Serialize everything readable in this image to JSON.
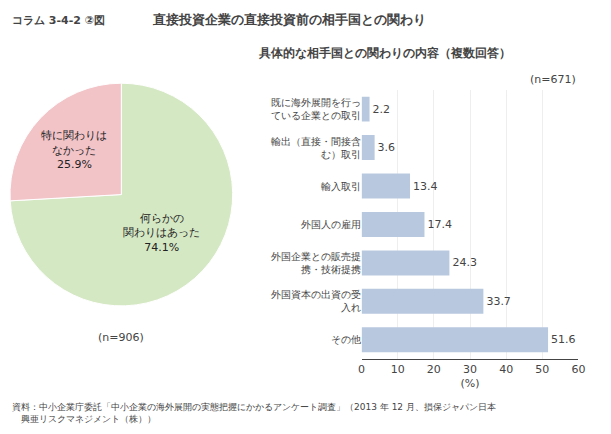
{
  "chart_data": [
    {
      "type": "pie",
      "title": "直接投資企業の直接投資前の相手国との関わり",
      "categories": [
        "何らかの\n関わりはあった",
        "特に関わりは\nなかった"
      ],
      "values": [
        74.1,
        25.9
      ],
      "value_labels": [
        "74.1%",
        "25.9%"
      ],
      "colors": [
        "#d5e8c4",
        "#f2c4c8"
      ],
      "data_labels": true,
      "annotations": [
        "コラム 3-4-2 ②図",
        "(n=906)",
        "資料：中小企業庁委託「中小企業の海外展開の実態把握にかかるアンケート調査」（2013 年 12 月、損保ジャパン日本\n　興亜リスクマネジメント（株））"
      ]
    },
    {
      "type": "bar",
      "orientation": "horizontal",
      "title": "具体的な相手国との関わりの内容（複数回答）",
      "categories": [
        "既に海外展開を行っ\nている企業との取引",
        "輸出（直接・間接含\nむ）取引",
        "輸入取引",
        "外国人の雇用",
        "外国企業との販売提\n携・技術提携",
        "外国資本の出資の受\n入れ",
        "その他"
      ],
      "values": [
        2.2,
        3.6,
        13.4,
        17.4,
        24.3,
        33.7,
        51.6
      ],
      "color": "#b8c9df",
      "xlabel": "(%)",
      "xlim": [
        0,
        60
      ],
      "xticks": [
        0,
        10,
        20,
        30,
        40,
        50,
        60
      ],
      "grid": true,
      "data_labels": true,
      "annotations": [
        "(n=671)"
      ]
    }
  ]
}
